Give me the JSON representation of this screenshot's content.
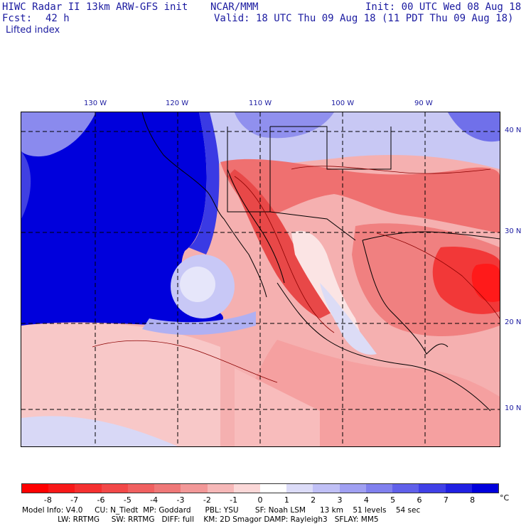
{
  "header": {
    "line1_left": "HIWC Radar II 13km ARW-GFS init",
    "line1_mid": "NCAR/MMM",
    "line1_right": "Init: 00 UTC Wed 08 Aug 18",
    "fcst_label": "Fcst:",
    "fcst_value": "42 h",
    "valid": "Valid: 18 UTC Thu 09 Aug 18 (11 PDT Thu 09 Aug 18)",
    "field": "Lifted index"
  },
  "axes": {
    "lon_labels": [
      "130 W",
      "120 W",
      "110 W",
      "100 W",
      "90 W"
    ],
    "lat_labels": [
      "40 N",
      "30 N",
      "20 N",
      "10 N"
    ]
  },
  "colorbar": {
    "labels": [
      "-8",
      "-7",
      "-6",
      "-5",
      "-4",
      "-3",
      "-2",
      "-1",
      "0",
      "1",
      "2",
      "3",
      "4",
      "5",
      "6",
      "7",
      "8"
    ],
    "unit": "°C",
    "colors": [
      "#ff0000",
      "#f81818",
      "#f53030",
      "#f24848",
      "#f06060",
      "#ef7878",
      "#f29898",
      "#f6b8b8",
      "#fbd8d8",
      "#ffffff",
      "#dcdcf8",
      "#c0c0f6",
      "#a0a0f2",
      "#8080ee",
      "#6060ea",
      "#4040e6",
      "#2020e2",
      "#0000dc"
    ]
  },
  "footer": {
    "line1": "Model Info: V4.0     CU: N_Tiedt  MP: Goddard      PBL: YSU       SF: Noah LSM      13 km    51 levels    54 sec",
    "line2": "               LW: RRTMG     SW: RRTMG   DIFF: full    KM: 2D Smagor DAMP: Rayleigh3   SFLAY: MM5"
  },
  "map_colors": {
    "strong_blue": "#0000dc",
    "mid_blue": "#6a6aea",
    "light_blue": "#c8c8f6",
    "white": "#ffffff",
    "light_red": "#f6b8b8",
    "mid_red": "#ef7070",
    "strong_red": "#f23030"
  }
}
